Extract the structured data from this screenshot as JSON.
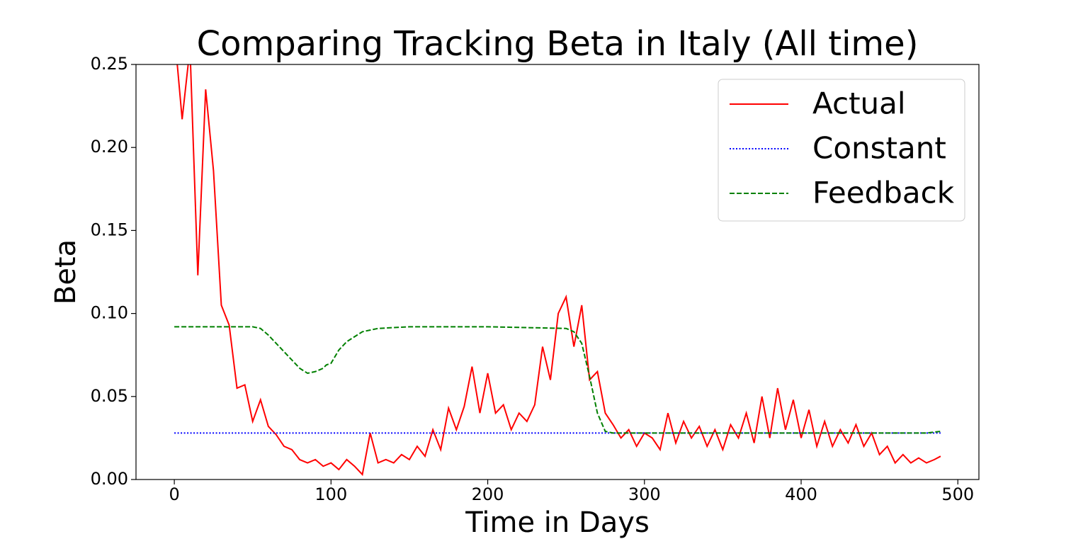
{
  "chart_data": {
    "type": "line",
    "title": "Comparing Tracking Beta in Italy (All time)",
    "x_label": "Time in Days",
    "y_label": "Beta",
    "xlim": [
      -24.45,
      513.45
    ],
    "ylim": [
      0,
      0.25
    ],
    "xticks": [
      0,
      100,
      200,
      300,
      400,
      500
    ],
    "yticks": [
      {
        "value": 0,
        "label": "0.00"
      },
      {
        "value": 0.05,
        "label": "0.05"
      },
      {
        "value": 0.1,
        "label": "0.10"
      },
      {
        "value": 0.15,
        "label": "0.15"
      },
      {
        "value": 0.2,
        "label": "0.20"
      },
      {
        "value": 0.25,
        "label": "0.25"
      }
    ],
    "legend": "upper right",
    "series": [
      {
        "name": "Actual",
        "color": "#ff0000",
        "linestyle": "solid",
        "x": [
          0,
          5,
          10,
          15,
          20,
          25,
          30,
          35,
          40,
          45,
          50,
          55,
          60,
          65,
          70,
          75,
          80,
          85,
          90,
          95,
          100,
          105,
          110,
          115,
          120,
          125,
          130,
          135,
          140,
          145,
          150,
          155,
          160,
          165,
          170,
          175,
          180,
          185,
          190,
          195,
          200,
          205,
          210,
          215,
          220,
          225,
          230,
          235,
          240,
          245,
          250,
          255,
          260,
          265,
          270,
          275,
          280,
          285,
          290,
          295,
          300,
          305,
          310,
          315,
          320,
          325,
          330,
          335,
          340,
          345,
          350,
          355,
          360,
          365,
          370,
          375,
          380,
          385,
          390,
          395,
          400,
          405,
          410,
          415,
          420,
          425,
          430,
          435,
          440,
          445,
          450,
          455,
          460,
          465,
          470,
          475,
          480,
          485,
          489
        ],
        "values": [
          0.27,
          0.217,
          0.26,
          0.123,
          0.235,
          0.186,
          0.105,
          0.093,
          0.055,
          0.057,
          0.035,
          0.048,
          0.032,
          0.027,
          0.02,
          0.018,
          0.012,
          0.01,
          0.012,
          0.008,
          0.01,
          0.006,
          0.012,
          0.008,
          0.003,
          0.028,
          0.01,
          0.012,
          0.01,
          0.015,
          0.012,
          0.02,
          0.014,
          0.03,
          0.018,
          0.043,
          0.03,
          0.044,
          0.068,
          0.04,
          0.064,
          0.04,
          0.045,
          0.03,
          0.04,
          0.035,
          0.045,
          0.08,
          0.06,
          0.1,
          0.11,
          0.08,
          0.105,
          0.06,
          0.065,
          0.04,
          0.033,
          0.025,
          0.03,
          0.02,
          0.028,
          0.025,
          0.018,
          0.04,
          0.022,
          0.035,
          0.025,
          0.032,
          0.02,
          0.03,
          0.018,
          0.033,
          0.025,
          0.04,
          0.022,
          0.05,
          0.025,
          0.055,
          0.03,
          0.048,
          0.025,
          0.042,
          0.02,
          0.035,
          0.02,
          0.03,
          0.022,
          0.033,
          0.02,
          0.028,
          0.015,
          0.02,
          0.01,
          0.015,
          0.01,
          0.013,
          0.01,
          0.012,
          0.014
        ]
      },
      {
        "name": "Constant",
        "color": "#0000ff",
        "linestyle": "dotted",
        "x": [
          0,
          489
        ],
        "values": [
          0.028,
          0.028
        ]
      },
      {
        "name": "Feedback",
        "color": "#008000",
        "linestyle": "dashed",
        "x": [
          0,
          30,
          50,
          55,
          60,
          70,
          80,
          85,
          90,
          95,
          97,
          100,
          105,
          110,
          120,
          130,
          150,
          200,
          250,
          255,
          260,
          265,
          270,
          275,
          280,
          300,
          400,
          480,
          489
        ],
        "values": [
          0.092,
          0.092,
          0.092,
          0.091,
          0.087,
          0.077,
          0.067,
          0.064,
          0.065,
          0.067,
          0.069,
          0.07,
          0.078,
          0.083,
          0.089,
          0.091,
          0.092,
          0.092,
          0.091,
          0.089,
          0.082,
          0.062,
          0.04,
          0.029,
          0.028,
          0.028,
          0.028,
          0.028,
          0.029
        ]
      }
    ]
  }
}
